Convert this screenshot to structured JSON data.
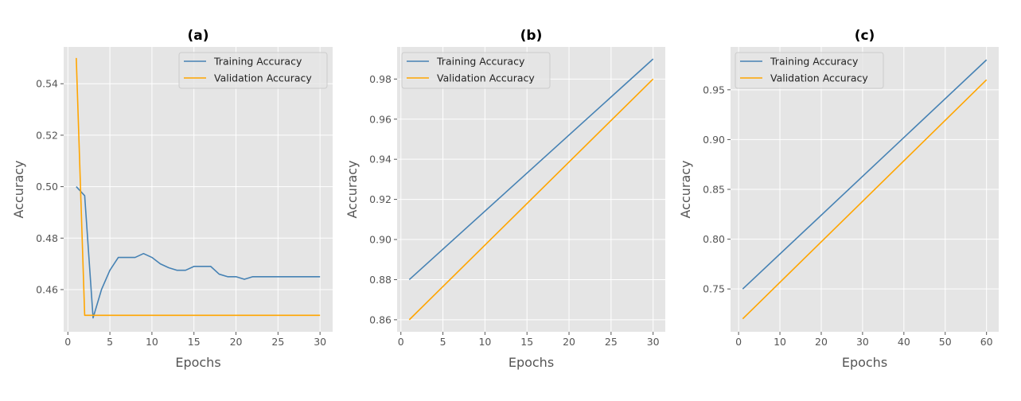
{
  "colors": {
    "background": "#ffffff",
    "plot_background": "#e5e5e5",
    "grid": "#ffffff",
    "text": "#555555",
    "title_text": "#000000",
    "training": "#4682b4",
    "validation": "#ffa500"
  },
  "chart_data": [
    {
      "type": "line",
      "title": "(a)",
      "xlabel": "Epochs",
      "ylabel": "Accuracy",
      "xlim": [
        -0.5,
        31.5
      ],
      "ylim": [
        0.4436,
        0.5543
      ],
      "xticks": [
        0,
        5,
        10,
        15,
        20,
        25,
        30
      ],
      "yticks": [
        0.46,
        0.48,
        0.5,
        0.52,
        0.54
      ],
      "ytick_labels": [
        "0.46",
        "0.48",
        "0.50",
        "0.52",
        "0.54"
      ],
      "grid": true,
      "legend": "top-right",
      "series": [
        {
          "name": "Training Accuracy",
          "color": "#4682b4",
          "x": [
            1,
            2,
            3,
            4,
            5,
            6,
            7,
            8,
            9,
            10,
            11,
            12,
            13,
            14,
            15,
            16,
            17,
            18,
            19,
            20,
            21,
            22,
            23,
            24,
            25,
            26,
            27,
            28,
            29,
            30
          ],
          "values": [
            0.5,
            0.4965,
            0.449,
            0.46,
            0.4675,
            0.4725,
            0.4725,
            0.4725,
            0.474,
            0.4725,
            0.47,
            0.4685,
            0.4675,
            0.4675,
            0.469,
            0.469,
            0.469,
            0.466,
            0.465,
            0.465,
            0.464,
            0.465,
            0.465,
            0.465,
            0.465,
            0.465,
            0.465,
            0.465,
            0.465,
            0.465
          ]
        },
        {
          "name": "Validation Accuracy",
          "color": "#ffa500",
          "x": [
            1,
            2,
            3,
            4,
            5,
            6,
            7,
            8,
            9,
            10,
            11,
            12,
            13,
            14,
            15,
            16,
            17,
            18,
            19,
            20,
            21,
            22,
            23,
            24,
            25,
            26,
            27,
            28,
            29,
            30
          ],
          "values": [
            0.55,
            0.45,
            0.45,
            0.45,
            0.45,
            0.45,
            0.45,
            0.45,
            0.45,
            0.45,
            0.45,
            0.45,
            0.45,
            0.45,
            0.45,
            0.45,
            0.45,
            0.45,
            0.45,
            0.45,
            0.45,
            0.45,
            0.45,
            0.45,
            0.45,
            0.45,
            0.45,
            0.45,
            0.45,
            0.45
          ]
        }
      ]
    },
    {
      "type": "line",
      "title": "(b)",
      "xlabel": "Epochs",
      "ylabel": "Accuracy",
      "xlim": [
        -0.45,
        31.45
      ],
      "ylim": [
        0.854,
        0.996
      ],
      "xticks": [
        0,
        5,
        10,
        15,
        20,
        25,
        30
      ],
      "yticks": [
        0.86,
        0.88,
        0.9,
        0.92,
        0.94,
        0.96,
        0.98
      ],
      "ytick_labels": [
        "0.86",
        "0.88",
        "0.90",
        "0.92",
        "0.94",
        "0.96",
        "0.98"
      ],
      "grid": true,
      "legend": "top-left",
      "series": [
        {
          "name": "Training Accuracy",
          "color": "#4682b4",
          "x": [
            1,
            30
          ],
          "values": [
            0.88,
            0.99
          ]
        },
        {
          "name": "Validation Accuracy",
          "color": "#ffa500",
          "x": [
            1,
            30
          ],
          "values": [
            0.86,
            0.98
          ]
        }
      ]
    },
    {
      "type": "line",
      "title": "(c)",
      "xlabel": "Epochs",
      "ylabel": "Accuracy",
      "xlim": [
        -1.95,
        62.95
      ],
      "ylim": [
        0.707,
        0.993
      ],
      "xticks": [
        0,
        10,
        20,
        30,
        40,
        50,
        60
      ],
      "yticks": [
        0.75,
        0.8,
        0.85,
        0.9,
        0.95
      ],
      "ytick_labels": [
        "0.75",
        "0.80",
        "0.85",
        "0.90",
        "0.95"
      ],
      "grid": true,
      "legend": "top-left",
      "series": [
        {
          "name": "Training Accuracy",
          "color": "#4682b4",
          "x": [
            1,
            60
          ],
          "values": [
            0.75,
            0.98
          ]
        },
        {
          "name": "Validation Accuracy",
          "color": "#ffa500",
          "x": [
            1,
            60
          ],
          "values": [
            0.72,
            0.96
          ]
        }
      ]
    }
  ]
}
